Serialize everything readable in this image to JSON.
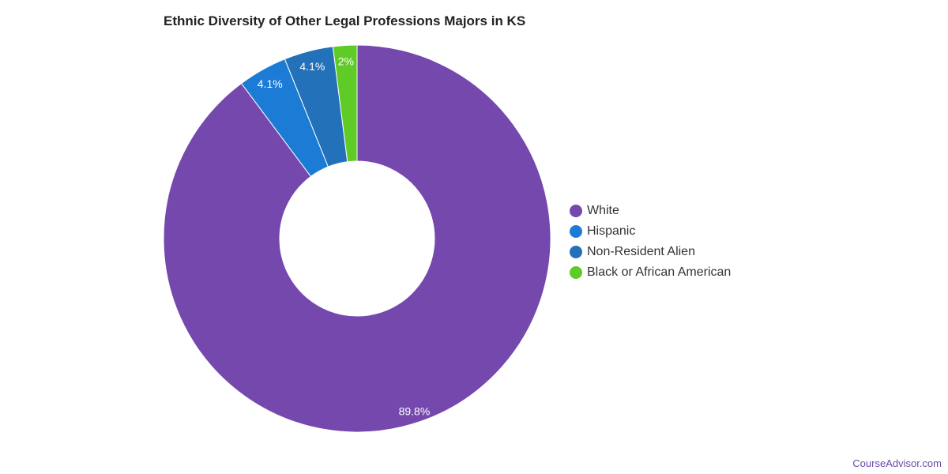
{
  "chart_data": {
    "type": "pie",
    "title": "Ethnic Diversity of Other Legal Professions Majors in KS",
    "categories": [
      "White",
      "Hispanic",
      "Non-Resident Alien",
      "Black or African American"
    ],
    "values": [
      89.8,
      4.1,
      4.1,
      2
    ],
    "labels": [
      "89.8%",
      "4.1%",
      "4.1%",
      "2%"
    ],
    "colors": [
      "#7548ae",
      "#1c7cd5",
      "#2271b9",
      "#5fcb26"
    ],
    "legend": "right"
  },
  "footer": {
    "brand": "CourseAdvisor.com"
  }
}
